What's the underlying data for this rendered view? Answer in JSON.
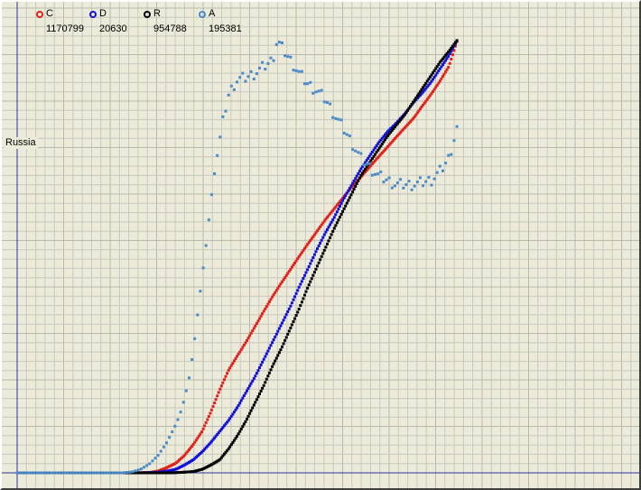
{
  "region": "Russia",
  "legend": [
    {
      "key": "C",
      "value": "1170799",
      "color": "#e0201a"
    },
    {
      "key": "D",
      "value": "20630",
      "color": "#1010d8"
    },
    {
      "key": "R",
      "value": "954788",
      "color": "#000000"
    },
    {
      "key": "A",
      "value": "195381",
      "color": "#4a8ac8"
    }
  ],
  "colors": {
    "background": "#ecebd9",
    "grid_minor": "#c8c8bf",
    "grid_major": "#b8b8ae",
    "axis": "#3030a0"
  },
  "chart_data": {
    "type": "scatter",
    "grid": true,
    "legend_position": "top-left",
    "x_range": [
      0,
      700
    ],
    "y_range": [
      0,
      1
    ],
    "series": [
      {
        "name": "C",
        "color": "#e0201a",
        "points": [
          [
            0,
            0
          ],
          [
            130,
            0
          ],
          [
            150,
            0.0008
          ],
          [
            160,
            0.004
          ],
          [
            170,
            0.012
          ],
          [
            180,
            0.022
          ],
          [
            190,
            0.04
          ],
          [
            200,
            0.065
          ],
          [
            210,
            0.095
          ],
          [
            220,
            0.14
          ],
          [
            230,
            0.19
          ],
          [
            240,
            0.235
          ],
          [
            250,
            0.268
          ],
          [
            260,
            0.3
          ],
          [
            270,
            0.335
          ],
          [
            280,
            0.37
          ],
          [
            290,
            0.404
          ],
          [
            300,
            0.435
          ],
          [
            310,
            0.465
          ],
          [
            320,
            0.495
          ],
          [
            330,
            0.524
          ],
          [
            340,
            0.552
          ],
          [
            350,
            0.58
          ],
          [
            360,
            0.605
          ],
          [
            370,
            0.63
          ],
          [
            380,
            0.655
          ],
          [
            390,
            0.677
          ],
          [
            400,
            0.7
          ],
          [
            410,
            0.723
          ],
          [
            420,
            0.745
          ],
          [
            430,
            0.768
          ],
          [
            440,
            0.79
          ],
          [
            450,
            0.812
          ],
          [
            460,
            0.84
          ],
          [
            470,
            0.867
          ],
          [
            480,
            0.897
          ],
          [
            490,
            0.93
          ],
          [
            500,
            0.992
          ]
        ]
      },
      {
        "name": "D",
        "color": "#1010d8",
        "points": [
          [
            0,
            0
          ],
          [
            140,
            0
          ],
          [
            150,
            0.0005
          ],
          [
            160,
            0.0015
          ],
          [
            170,
            0.004
          ],
          [
            180,
            0.008
          ],
          [
            190,
            0.018
          ],
          [
            200,
            0.03
          ],
          [
            210,
            0.048
          ],
          [
            220,
            0.07
          ],
          [
            230,
            0.095
          ],
          [
            240,
            0.12
          ],
          [
            250,
            0.15
          ],
          [
            260,
            0.185
          ],
          [
            270,
            0.22
          ],
          [
            280,
            0.26
          ],
          [
            290,
            0.3
          ],
          [
            300,
            0.34
          ],
          [
            310,
            0.38
          ],
          [
            320,
            0.425
          ],
          [
            330,
            0.467
          ],
          [
            340,
            0.51
          ],
          [
            350,
            0.55
          ],
          [
            360,
            0.585
          ],
          [
            370,
            0.625
          ],
          [
            380,
            0.66
          ],
          [
            390,
            0.695
          ],
          [
            400,
            0.725
          ],
          [
            410,
            0.755
          ],
          [
            420,
            0.78
          ],
          [
            430,
            0.8
          ],
          [
            440,
            0.822
          ],
          [
            450,
            0.848
          ],
          [
            460,
            0.87
          ],
          [
            470,
            0.895
          ],
          [
            480,
            0.925
          ],
          [
            490,
            0.955
          ],
          [
            500,
            0.992
          ]
        ]
      },
      {
        "name": "R",
        "color": "#000000",
        "points": [
          [
            0,
            0
          ],
          [
            170,
            0
          ],
          [
            180,
            0.0005
          ],
          [
            190,
            0.0015
          ],
          [
            200,
            0.003
          ],
          [
            210,
            0.008
          ],
          [
            220,
            0.018
          ],
          [
            230,
            0.03
          ],
          [
            240,
            0.055
          ],
          [
            250,
            0.085
          ],
          [
            260,
            0.12
          ],
          [
            270,
            0.16
          ],
          [
            280,
            0.2
          ],
          [
            290,
            0.245
          ],
          [
            300,
            0.285
          ],
          [
            310,
            0.33
          ],
          [
            320,
            0.375
          ],
          [
            330,
            0.425
          ],
          [
            340,
            0.47
          ],
          [
            350,
            0.515
          ],
          [
            360,
            0.56
          ],
          [
            370,
            0.6
          ],
          [
            380,
            0.64
          ],
          [
            390,
            0.68
          ],
          [
            400,
            0.71
          ],
          [
            410,
            0.74
          ],
          [
            420,
            0.77
          ],
          [
            430,
            0.795
          ],
          [
            440,
            0.82
          ],
          [
            450,
            0.85
          ],
          [
            460,
            0.88
          ],
          [
            470,
            0.91
          ],
          [
            480,
            0.94
          ],
          [
            490,
            0.965
          ],
          [
            500,
            0.992
          ]
        ]
      },
      {
        "name": "A",
        "color": "#4a8ac8",
        "points": [
          [
            0,
            0
          ],
          [
            120,
            0
          ],
          [
            130,
            0.002
          ],
          [
            140,
            0.008
          ],
          [
            150,
            0.02
          ],
          [
            160,
            0.04
          ],
          [
            170,
            0.07
          ],
          [
            180,
            0.11
          ],
          [
            185,
            0.135
          ],
          [
            190,
            0.17
          ],
          [
            195,
            0.215
          ],
          [
            200,
            0.28
          ],
          [
            205,
            0.365
          ],
          [
            210,
            0.45
          ],
          [
            215,
            0.53
          ],
          [
            220,
            0.625
          ],
          [
            225,
            0.7
          ],
          [
            230,
            0.76
          ],
          [
            235,
            0.82
          ],
          [
            240,
            0.865
          ],
          [
            245,
            0.885
          ],
          [
            250,
            0.9
          ],
          [
            260,
            0.905
          ],
          [
            270,
            0.915
          ],
          [
            280,
            0.93
          ],
          [
            290,
            0.945
          ],
          [
            295,
            0.99
          ],
          [
            300,
            0.975
          ],
          [
            310,
            0.945
          ],
          [
            320,
            0.915
          ],
          [
            330,
            0.89
          ],
          [
            340,
            0.875
          ],
          [
            350,
            0.855
          ],
          [
            360,
            0.82
          ],
          [
            370,
            0.79
          ],
          [
            380,
            0.755
          ],
          [
            390,
            0.72
          ],
          [
            400,
            0.7
          ],
          [
            410,
            0.68
          ],
          [
            420,
            0.67
          ],
          [
            430,
            0.66
          ],
          [
            440,
            0.66
          ],
          [
            450,
            0.66
          ],
          [
            460,
            0.665
          ],
          [
            470,
            0.67
          ],
          [
            480,
            0.69
          ],
          [
            490,
            0.72
          ],
          [
            500,
            0.795
          ]
        ]
      }
    ]
  }
}
